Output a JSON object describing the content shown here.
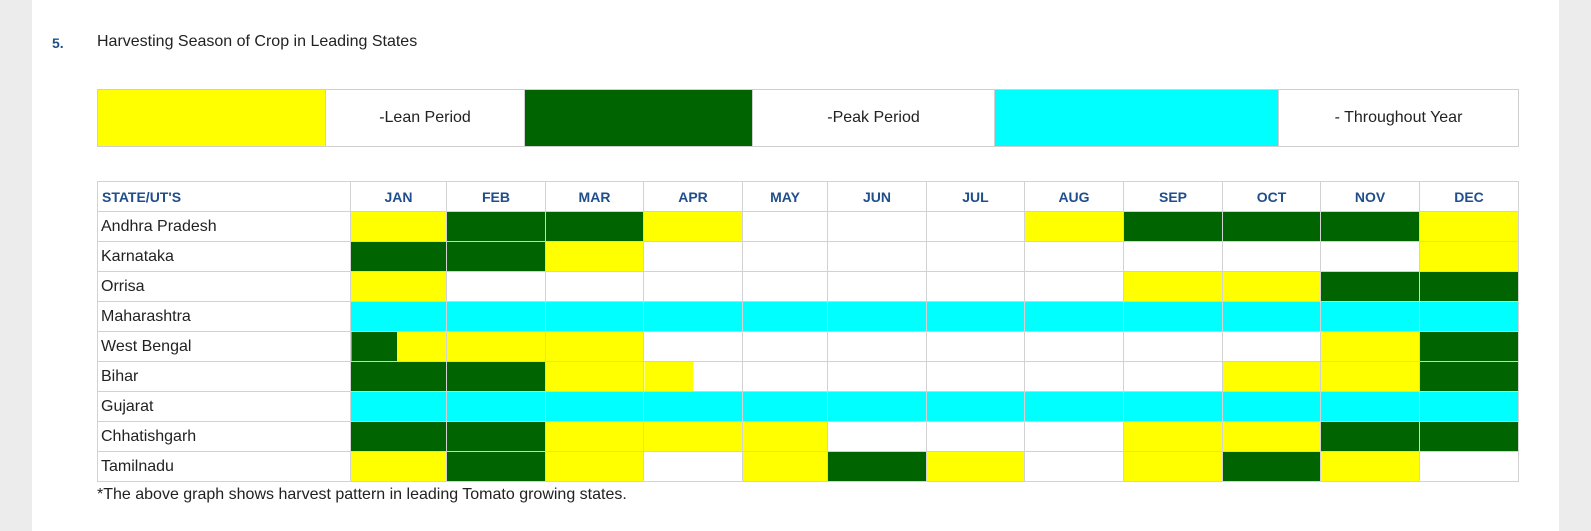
{
  "section": {
    "number": "5.",
    "title": "Harvesting Season of Crop in Leading States"
  },
  "legend": {
    "lean_label": "-Lean Period",
    "peak_label": "-Peak Period",
    "throughout_label": "- Throughout Year",
    "lean_color": "#ffff00",
    "peak_color": "#006400",
    "throughout_color": "#00ffff"
  },
  "table": {
    "state_header": "STATE/UT'S",
    "months": [
      "JAN",
      "FEB",
      "MAR",
      "APR",
      "MAY",
      "JUN",
      "JUL",
      "AUG",
      "SEP",
      "OCT",
      "NOV",
      "DEC"
    ]
  },
  "states": [
    {
      "name": "Andhra Pradesh",
      "cells": [
        "y",
        "g",
        "g",
        "y",
        "w",
        "w",
        "w",
        "y",
        "g",
        "g",
        "g",
        "y"
      ]
    },
    {
      "name": "Karnataka",
      "cells": [
        "g",
        "g",
        "y",
        "w",
        "w",
        "w",
        "w",
        "w",
        "w",
        "w",
        "w",
        "y"
      ]
    },
    {
      "name": "Orrisa",
      "cells": [
        "y",
        "w",
        "w",
        "w",
        "w",
        "w",
        "w",
        "w",
        "y",
        "y",
        "g",
        "g"
      ]
    },
    {
      "name": "Maharashtra",
      "cells": [
        "c",
        "c",
        "c",
        "c",
        "c",
        "c",
        "c",
        "c",
        "c",
        "c",
        "c",
        "c"
      ]
    },
    {
      "name": "West Bengal",
      "cells": [
        "gy",
        "y",
        "y",
        "w",
        "w",
        "w",
        "w",
        "w",
        "w",
        "w",
        "y",
        "g"
      ]
    },
    {
      "name": "Bihar",
      "cells": [
        "g",
        "g",
        "y",
        "yw",
        "w",
        "w",
        "w",
        "w",
        "w",
        "y",
        "y",
        "g"
      ]
    },
    {
      "name": "Gujarat",
      "cells": [
        "c",
        "c",
        "c",
        "c",
        "c",
        "c",
        "c",
        "c",
        "c",
        "c",
        "c",
        "c"
      ]
    },
    {
      "name": "Chhatishgarh",
      "cells": [
        "g",
        "g",
        "y",
        "y",
        "y",
        "w",
        "w",
        "w",
        "y",
        "y",
        "g",
        "g"
      ]
    },
    {
      "name": "Tamilnadu",
      "cells": [
        "y",
        "g",
        "y",
        "w",
        "y",
        "g",
        "y",
        "w",
        "y",
        "g",
        "y",
        "w"
      ]
    }
  ],
  "footnote": "*The above graph shows harvest pattern in leading Tomato growing states."
}
